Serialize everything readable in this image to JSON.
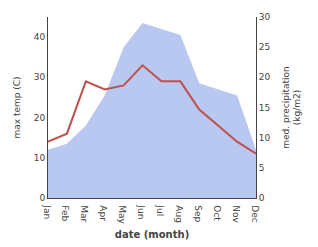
{
  "chart_data": {
    "type": "line",
    "categories": [
      "Jan",
      "Feb",
      "Mar",
      "Apr",
      "May",
      "Jun",
      "Jul",
      "Aug",
      "Sep",
      "Oct",
      "Nov",
      "Dec"
    ],
    "series": [
      {
        "type": "area",
        "axis": "y2",
        "color": "#b8c8f0",
        "values": [
          8,
          9,
          12,
          17,
          25,
          29,
          28,
          27,
          19,
          18,
          17,
          8
        ]
      },
      {
        "type": "line",
        "color": "#c0504d",
        "values": [
          14,
          16,
          29,
          27,
          28,
          33,
          29,
          29,
          22,
          18,
          14,
          11
        ]
      }
    ],
    "xlabel": "date (month)",
    "ylabel": "max temp (C)",
    "y2label": "med. precipitation\n(kg/m2)",
    "ylim": [
      0,
      45
    ],
    "yticks": [
      0,
      10,
      20,
      30,
      40
    ],
    "y2lim": [
      0,
      30
    ],
    "y2ticks": [
      0,
      5,
      10,
      15,
      20,
      25,
      30
    ],
    "grid": false
  }
}
